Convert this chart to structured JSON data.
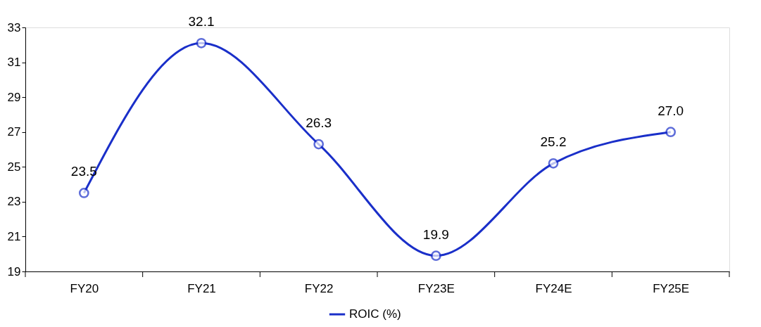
{
  "chart_data": {
    "type": "line",
    "categories": [
      "FY20",
      "FY21",
      "FY22",
      "FY23E",
      "FY24E",
      "FY25E"
    ],
    "series": [
      {
        "name": "ROIC (%)",
        "color": "#1a2fc9",
        "values": [
          23.5,
          32.1,
          26.3,
          19.9,
          25.2,
          27.0
        ],
        "value_labels": [
          "23.5",
          "32.1",
          "26.3",
          "19.9",
          "25.2",
          "27.0"
        ]
      }
    ],
    "ylim": [
      19,
      33
    ],
    "yticks": [
      19,
      21,
      23,
      25,
      27,
      29,
      31,
      33
    ],
    "grid": false,
    "legend": "bottom",
    "marker": "circle",
    "line_style": "solid"
  }
}
